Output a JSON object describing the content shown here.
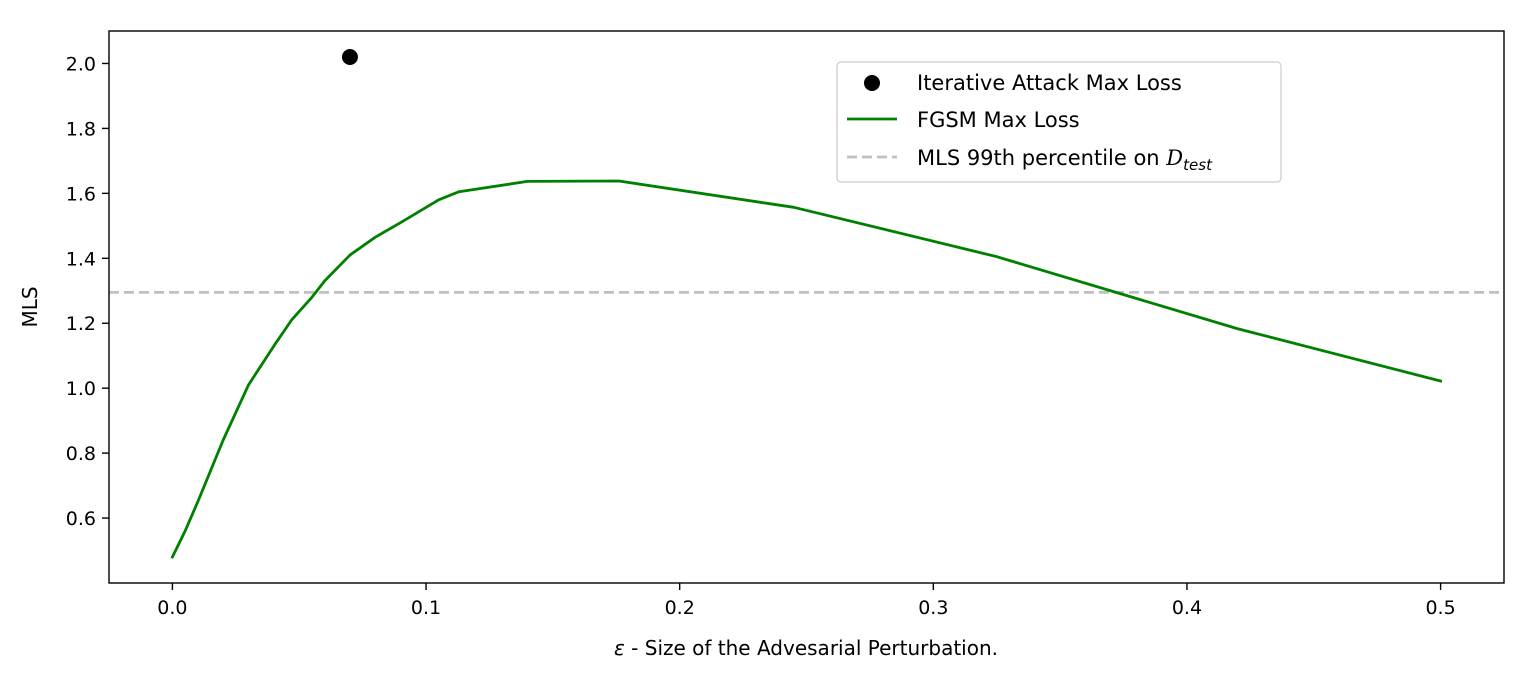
{
  "chart_data": {
    "type": "line",
    "title": "",
    "xlabel_symbol": "ε",
    "xlabel": " - Size of the Advesarial Perturbation.",
    "ylabel": "MLS",
    "xlim": [
      -0.025,
      0.525
    ],
    "ylim": [
      0.4,
      2.1
    ],
    "xticks": [
      0.0,
      0.1,
      0.2,
      0.3,
      0.4,
      0.5
    ],
    "xtick_labels": [
      "0.0",
      "0.1",
      "0.2",
      "0.3",
      "0.4",
      "0.5"
    ],
    "yticks": [
      0.6,
      0.8,
      1.0,
      1.2,
      1.4,
      1.6,
      1.8,
      2.0
    ],
    "ytick_labels": [
      "0.6",
      "0.8",
      "1.0",
      "1.2",
      "1.4",
      "1.6",
      "1.8",
      "2.0"
    ],
    "grid": false,
    "legend_position": "top-right",
    "series": [
      {
        "name": "Iterative Attack Max Loss",
        "kind": "scatter",
        "color": "#000000",
        "x": [
          0.07
        ],
        "y": [
          2.02
        ]
      },
      {
        "name": "FGSM Max Loss",
        "kind": "line",
        "color": "#008000",
        "x": [
          0.0,
          0.005,
          0.01,
          0.02,
          0.03,
          0.04,
          0.047,
          0.055,
          0.06,
          0.07,
          0.08,
          0.09,
          0.105,
          0.113,
          0.14,
          0.176,
          0.245,
          0.325,
          0.42,
          0.5
        ],
        "y": [
          0.48,
          0.56,
          0.65,
          0.84,
          1.01,
          1.13,
          1.21,
          1.28,
          1.33,
          1.41,
          1.465,
          1.51,
          1.58,
          1.605,
          1.637,
          1.638,
          1.557,
          1.405,
          1.183,
          1.022
        ]
      },
      {
        "name": "MLS 99th percentile on ",
        "name_math": "D",
        "name_sub": "test",
        "kind": "hline",
        "color": "#c0c0c0",
        "y": 1.295
      }
    ]
  }
}
